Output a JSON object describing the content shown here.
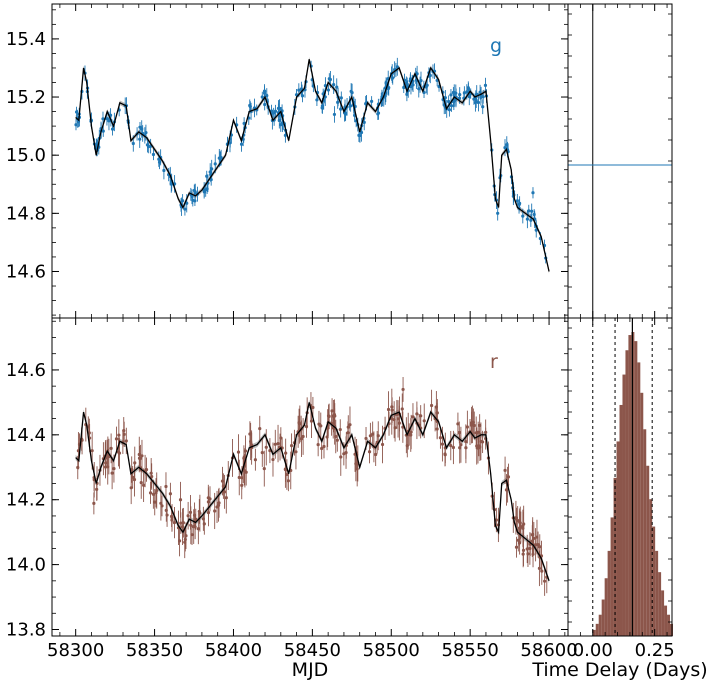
{
  "colors": {
    "g_band": "#1f77b4",
    "r_band": "#8c564b",
    "model": "#000000",
    "band_fill": "#a0a0a0"
  },
  "chart_data": [
    {
      "type": "scatter",
      "panel": "g-band light curve",
      "band_label": "g",
      "x_range": [
        58285,
        58612
      ],
      "ylim": [
        14.44,
        15.52
      ],
      "x_ticks": [
        58300,
        58350,
        58400,
        58450,
        58500,
        58550,
        58600
      ],
      "y_ticks": [
        14.6,
        14.8,
        15.0,
        15.2,
        15.4
      ],
      "y_tick_labels": [
        "14.6",
        "14.8",
        "15.0",
        "15.2",
        "15.4"
      ],
      "grid": false,
      "series": [
        {
          "kind": "model-line-with-band",
          "anchors_x": [
            58300,
            58302,
            58305,
            58307,
            58310,
            58313,
            58316,
            58320,
            58324,
            58328,
            58332,
            58335,
            58340,
            58345,
            58350,
            58355,
            58360,
            58365,
            58368,
            58372,
            58376,
            58380,
            58385,
            58390,
            58395,
            58400,
            58405,
            58410,
            58415,
            58420,
            58425,
            58430,
            58435,
            58440,
            58445,
            58448,
            58452,
            58456,
            58460,
            58465,
            58470,
            58475,
            58480,
            58485,
            58490,
            58495,
            58500,
            58505,
            58510,
            58515,
            58520,
            58525,
            58530,
            58535,
            58540,
            58545,
            58550,
            58553,
            58557,
            58560,
            58563,
            58566,
            58568,
            58570,
            58573,
            58576,
            58578,
            58580,
            58585,
            58590,
            58595,
            58600
          ],
          "anchors_y": [
            15.13,
            15.12,
            15.3,
            15.25,
            15.1,
            15.0,
            15.08,
            15.15,
            15.1,
            15.18,
            15.17,
            15.05,
            15.08,
            15.06,
            15.02,
            14.98,
            14.93,
            14.85,
            14.82,
            14.87,
            14.86,
            14.88,
            14.92,
            14.96,
            15.0,
            15.12,
            15.05,
            15.15,
            15.16,
            15.2,
            15.12,
            15.15,
            15.05,
            15.2,
            15.23,
            15.33,
            15.22,
            15.18,
            15.25,
            15.22,
            15.15,
            15.2,
            15.08,
            15.18,
            15.15,
            15.2,
            15.28,
            15.3,
            15.22,
            15.28,
            15.22,
            15.3,
            15.26,
            15.16,
            15.2,
            15.18,
            15.22,
            15.2,
            15.21,
            15.22,
            15.05,
            14.85,
            14.82,
            15.0,
            15.02,
            14.95,
            14.85,
            14.82,
            14.8,
            14.78,
            14.72,
            14.6
          ]
        },
        {
          "kind": "observations",
          "n_points": 320,
          "error_bar": 0.025
        }
      ]
    },
    {
      "type": "scatter",
      "panel": "r-band light curve",
      "band_label": "r",
      "x_range": [
        58285,
        58612
      ],
      "ylim": [
        13.78,
        14.76
      ],
      "x_ticks": [
        58300,
        58350,
        58400,
        58450,
        58500,
        58550,
        58600
      ],
      "x_tick_labels": [
        "58300",
        "58350",
        "58400",
        "58450",
        "58500",
        "58550",
        "58600"
      ],
      "y_ticks": [
        13.8,
        14.0,
        14.2,
        14.4,
        14.6
      ],
      "y_tick_labels": [
        "13.8",
        "14.0",
        "14.2",
        "14.4",
        "14.6"
      ],
      "xlabel": "MJD",
      "grid": false,
      "series": [
        {
          "kind": "model-line-with-band",
          "anchors_x": [
            58300,
            58302,
            58305,
            58307,
            58310,
            58313,
            58316,
            58320,
            58324,
            58328,
            58332,
            58335,
            58340,
            58345,
            58350,
            58355,
            58360,
            58365,
            58368,
            58372,
            58376,
            58380,
            58385,
            58390,
            58395,
            58400,
            58405,
            58410,
            58415,
            58420,
            58425,
            58430,
            58435,
            58440,
            58445,
            58448,
            58452,
            58456,
            58460,
            58465,
            58470,
            58475,
            58480,
            58485,
            58490,
            58495,
            58500,
            58505,
            58510,
            58515,
            58520,
            58525,
            58530,
            58535,
            58540,
            58545,
            58550,
            58553,
            58557,
            58560,
            58563,
            58566,
            58568,
            58570,
            58573,
            58576,
            58578,
            58580,
            58585,
            58590,
            58595,
            58600
          ],
          "anchors_y": [
            14.33,
            14.32,
            14.47,
            14.43,
            14.32,
            14.25,
            14.3,
            14.35,
            14.32,
            14.38,
            14.37,
            14.28,
            14.3,
            14.28,
            14.25,
            14.22,
            14.18,
            14.12,
            14.1,
            14.14,
            14.13,
            14.15,
            14.18,
            14.21,
            14.24,
            14.34,
            14.28,
            14.36,
            14.37,
            14.4,
            14.34,
            14.36,
            14.28,
            14.4,
            14.43,
            14.5,
            14.42,
            14.38,
            14.44,
            14.42,
            14.36,
            14.4,
            14.3,
            14.38,
            14.36,
            14.4,
            14.46,
            14.47,
            14.4,
            14.45,
            14.4,
            14.47,
            14.44,
            14.36,
            14.4,
            14.38,
            14.41,
            14.39,
            14.4,
            14.4,
            14.28,
            14.12,
            14.1,
            14.25,
            14.26,
            14.2,
            14.13,
            14.1,
            14.08,
            14.06,
            14.02,
            13.95
          ]
        },
        {
          "kind": "observations",
          "n_points": 300,
          "error_bar": 0.045
        }
      ]
    },
    {
      "type": "line",
      "panel": "g-band time delay",
      "x_range": [
        -0.1,
        0.32
      ],
      "series": [
        {
          "kind": "vertical-line",
          "x": 0.0
        },
        {
          "kind": "horizontal-line",
          "y_frac": 0.5
        }
      ]
    },
    {
      "type": "bar",
      "panel": "r-band time delay distribution",
      "xlabel": "Time Delay (Days)",
      "x_range": [
        -0.1,
        0.32
      ],
      "x_ticks": [
        0.0,
        0.25
      ],
      "x_tick_labels": [
        "0.00",
        "0.25"
      ],
      "bin_width": 0.012,
      "centers": [
        0.006,
        0.018,
        0.03,
        0.042,
        0.054,
        0.066,
        0.078,
        0.09,
        0.102,
        0.114,
        0.126,
        0.138,
        0.15,
        0.162,
        0.174,
        0.186,
        0.198,
        0.21,
        0.222,
        0.234,
        0.246,
        0.258,
        0.27,
        0.282,
        0.294,
        0.306,
        0.318
      ],
      "counts": [
        0.02,
        0.04,
        0.07,
        0.12,
        0.19,
        0.28,
        0.39,
        0.52,
        0.64,
        0.76,
        0.86,
        0.94,
        0.99,
        1.0,
        0.97,
        0.9,
        0.8,
        0.68,
        0.56,
        0.45,
        0.36,
        0.28,
        0.21,
        0.15,
        0.1,
        0.07,
        0.04
      ],
      "median": 0.16,
      "lower": 0.09,
      "upper": 0.24,
      "zero_line": 0.0
    }
  ]
}
